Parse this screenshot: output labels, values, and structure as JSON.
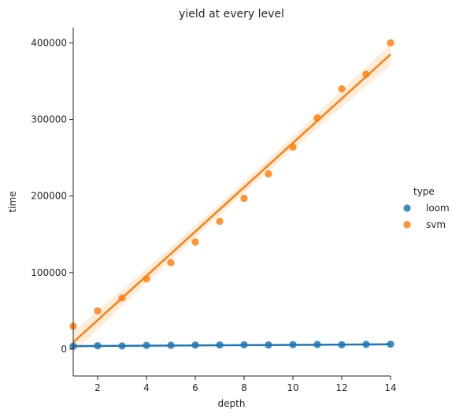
{
  "chart_data": {
    "type": "scatter",
    "title": "yield at every level",
    "xlabel": "depth",
    "ylabel": "time",
    "xlim": [
      1,
      14
    ],
    "ylim": [
      -35000,
      420000
    ],
    "xticks": [
      2,
      4,
      6,
      8,
      10,
      12,
      14
    ],
    "yticks": [
      0,
      100000,
      200000,
      300000,
      400000
    ],
    "ytick_labels": [
      "0",
      "100000",
      "200000",
      "300000",
      "400000"
    ],
    "grid": false,
    "legend": {
      "title": "type",
      "placement": "right"
    },
    "series": [
      {
        "name": "loom",
        "color": "#1f77b4",
        "x": [
          1,
          2,
          3,
          4,
          5,
          6,
          7,
          8,
          9,
          10,
          11,
          12,
          13,
          14
        ],
        "y": [
          4000,
          4500,
          4300,
          5000,
          5200,
          5400,
          5600,
          5800,
          5600,
          6000,
          6200,
          5800,
          6300,
          6500
        ],
        "regression": {
          "start": [
            1,
            4000
          ],
          "end": [
            14,
            6400
          ]
        }
      },
      {
        "name": "svm",
        "color": "#ff7f0e",
        "x": [
          1,
          2,
          3,
          4,
          5,
          6,
          7,
          8,
          9,
          10,
          11,
          12,
          13,
          14
        ],
        "y": [
          30000,
          50000,
          67000,
          92000,
          113000,
          140000,
          167000,
          197000,
          229000,
          264000,
          302000,
          340000,
          359000,
          400000
        ],
        "regression": {
          "start": [
            1,
            9000
          ],
          "end": [
            14,
            385000
          ]
        }
      }
    ]
  }
}
